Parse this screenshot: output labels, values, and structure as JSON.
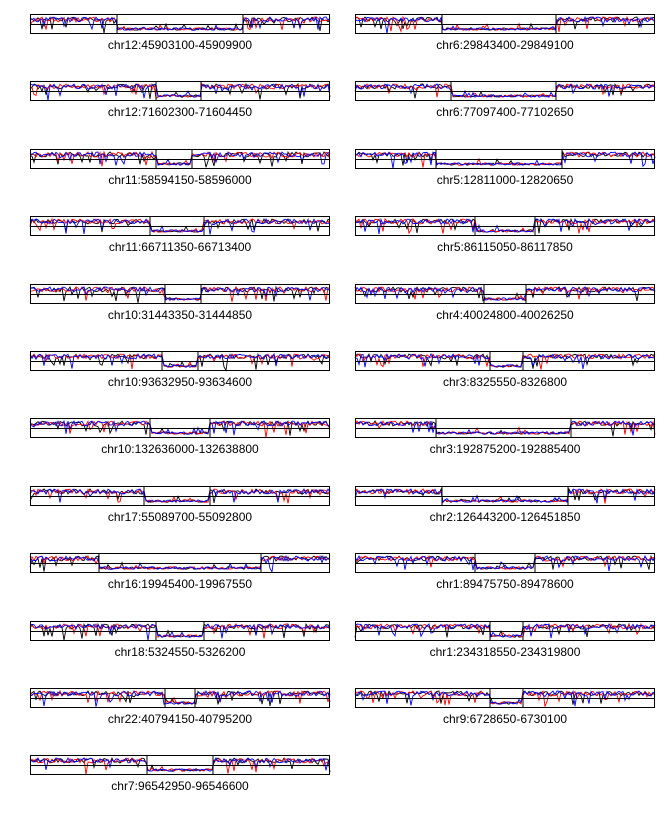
{
  "chart_data": {
    "type": "line",
    "layout": "small-multiples",
    "series_colors": [
      "#000000",
      "#ff0000",
      "#0000ff"
    ],
    "panels": [
      {
        "label": "chr12:45903100-45909900",
        "region_fraction": [
          0.29,
          0.71
        ]
      },
      {
        "label": "chr6:29843400-29849100",
        "region_fraction": [
          0.29,
          0.67
        ]
      },
      {
        "label": "chr12:71602300-71604450",
        "region_fraction": [
          0.42,
          0.57
        ]
      },
      {
        "label": "chr6:77097400-77102650",
        "region_fraction": [
          0.32,
          0.67
        ]
      },
      {
        "label": "chr11:58594150-58596000",
        "region_fraction": [
          0.42,
          0.54
        ]
      },
      {
        "label": "chr5:12811000-12820650",
        "region_fraction": [
          0.27,
          0.69
        ]
      },
      {
        "label": "chr11:66711350-66713400",
        "region_fraction": [
          0.4,
          0.58
        ]
      },
      {
        "label": "chr5:86115050-86117850",
        "region_fraction": [
          0.4,
          0.6
        ]
      },
      {
        "label": "chr10:31443350-31444850",
        "region_fraction": [
          0.45,
          0.57
        ]
      },
      {
        "label": "chr4:40024800-40026250",
        "region_fraction": [
          0.43,
          0.57
        ]
      },
      {
        "label": "chr10:93632950-93634600",
        "region_fraction": [
          0.44,
          0.56
        ]
      },
      {
        "label": "chr3:8325550-8326800",
        "region_fraction": [
          0.45,
          0.56
        ]
      },
      {
        "label": "chr10:132636000-132638800",
        "region_fraction": [
          0.4,
          0.6
        ]
      },
      {
        "label": "chr3:192875200-192885400",
        "region_fraction": [
          0.27,
          0.72
        ]
      },
      {
        "label": "chr17:55089700-55092800",
        "region_fraction": [
          0.38,
          0.6
        ]
      },
      {
        "label": "chr2:126443200-126451850",
        "region_fraction": [
          0.29,
          0.71
        ]
      },
      {
        "label": "chr16:19945400-19967550",
        "region_fraction": [
          0.23,
          0.77
        ]
      },
      {
        "label": "chr1:89475750-89478600",
        "region_fraction": [
          0.4,
          0.6
        ]
      },
      {
        "label": "chr18:5324550-5326200",
        "region_fraction": [
          0.42,
          0.58
        ]
      },
      {
        "label": "chr1:234318550-234319800",
        "region_fraction": [
          0.45,
          0.56
        ]
      },
      {
        "label": "chr22:40794150-40795200",
        "region_fraction": [
          0.45,
          0.55
        ]
      },
      {
        "label": "chr9:6728650-6730100",
        "region_fraction": [
          0.45,
          0.56
        ]
      },
      {
        "label": "chr7:96542950-96546600",
        "region_fraction": [
          0.39,
          0.61
        ]
      }
    ]
  }
}
